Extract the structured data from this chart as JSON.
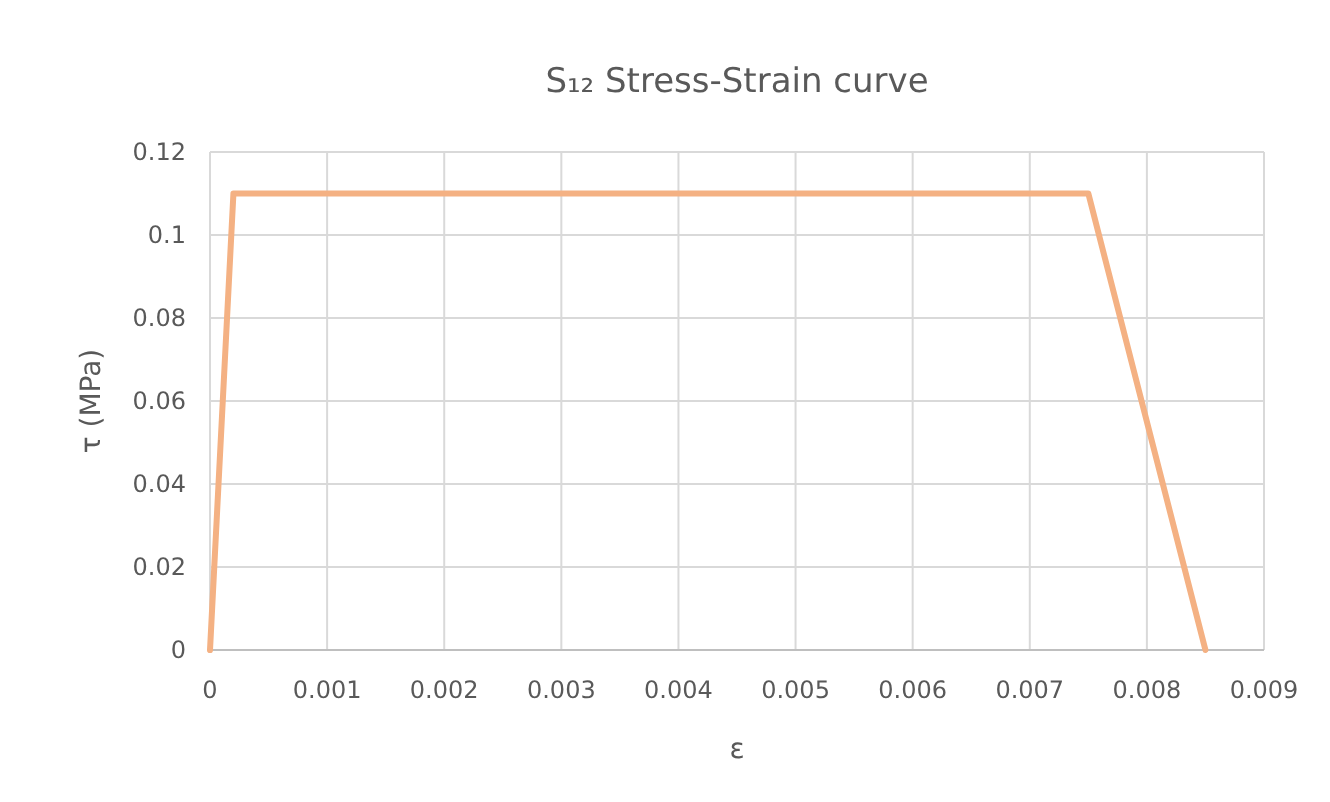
{
  "chart_data": {
    "type": "line",
    "title": "S₁₂ Stress-Strain curve",
    "xlabel": "ε",
    "ylabel": "τ (MPa)",
    "x": [
      0,
      0.0002,
      0.0075,
      0.0085
    ],
    "series": [
      {
        "color": "#f4b183",
        "values": [
          0,
          0.11,
          0.11,
          0
        ]
      }
    ],
    "xlim": [
      0,
      0.009
    ],
    "xticks": [
      0,
      0.001,
      0.002,
      0.003,
      0.004,
      0.005,
      0.006,
      0.007,
      0.008,
      0.009
    ],
    "ylim": [
      0,
      0.12
    ],
    "yticks": [
      0,
      0.02,
      0.04,
      0.06,
      0.08,
      0.1,
      0.12
    ],
    "grid": true,
    "marker": "none",
    "line_style": "solid"
  }
}
